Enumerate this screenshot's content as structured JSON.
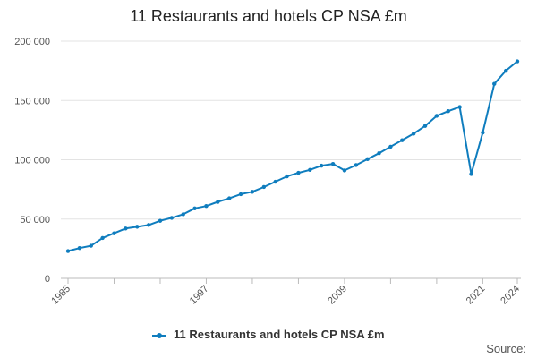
{
  "chart_data": {
    "type": "line",
    "title": "11 Restaurants and hotels CP NSA £m",
    "xlabel": "",
    "ylabel": "",
    "ylim": [
      0,
      200000
    ],
    "xlim": [
      1985,
      2024
    ],
    "x_ticks_labeled": [
      1985,
      1997,
      2009,
      2021,
      2024
    ],
    "y_tick_values": [
      0,
      50000,
      100000,
      150000,
      200000
    ],
    "y_tick_labels": [
      "0",
      "50 000",
      "100 000",
      "150 000",
      "200 000"
    ],
    "grid": "horizontal",
    "legend_position": "bottom",
    "series": [
      {
        "name": "11 Restaurants and hotels CP NSA £m",
        "color": "#0f7dbe",
        "x": [
          1985,
          1986,
          1987,
          1988,
          1989,
          1990,
          1991,
          1992,
          1993,
          1994,
          1995,
          1996,
          1997,
          1998,
          1999,
          2000,
          2001,
          2002,
          2003,
          2004,
          2005,
          2006,
          2007,
          2008,
          2009,
          2010,
          2011,
          2012,
          2013,
          2014,
          2015,
          2016,
          2017,
          2018,
          2019,
          2020,
          2021,
          2022,
          2023,
          2024
        ],
        "y": [
          23000,
          25500,
          27500,
          34000,
          38000,
          42000,
          43500,
          45000,
          48500,
          51000,
          54000,
          59000,
          61000,
          64500,
          67500,
          71000,
          73000,
          77000,
          81500,
          86000,
          89000,
          91500,
          95000,
          96500,
          91000,
          95500,
          100500,
          105500,
          111000,
          116500,
          122000,
          128500,
          137000,
          141000,
          144500,
          88000,
          123000,
          164000,
          175000,
          183000
        ]
      }
    ]
  },
  "source_label": "Source:"
}
